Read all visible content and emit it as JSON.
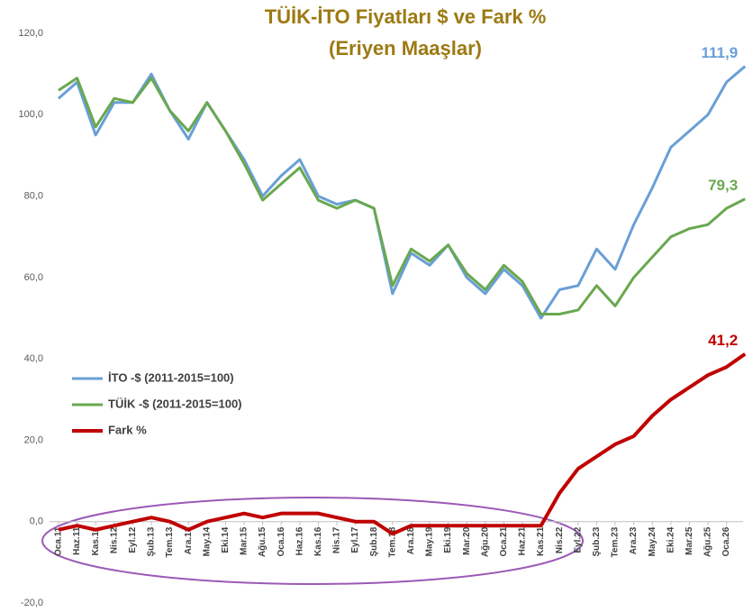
{
  "chart_data": {
    "type": "line",
    "title": "TÜİK-İTO Fiyatları $ ve Fark %",
    "subtitle": "(Eriyen Maaşlar)",
    "categories": [
      "Oca.11",
      "Haz.11",
      "Kas.11",
      "Nis.12",
      "Eyl.12",
      "Şub.13",
      "Tem.13",
      "Ara.13",
      "May.14",
      "Eki.14",
      "Mar.15",
      "Ağu.15",
      "Oca.16",
      "Haz.16",
      "Kas.16",
      "Nis.17",
      "Eyl.17",
      "Şub.18",
      "Tem.18",
      "Ara.18",
      "May.19",
      "Eki.19",
      "Mar.20",
      "Ağu.20",
      "Oca.21",
      "Haz.21",
      "Kas.21",
      "Nis.22",
      "Eyl.22",
      "Şub.23",
      "Tem.23",
      "Ara.23",
      "May.24",
      "Eki.24",
      "Mar.25",
      "Ağu.25",
      "Oca.26",
      null
    ],
    "series": [
      {
        "name": "İTO -$ (2011-2015=100)",
        "color": "#6a9fd6",
        "width": 3,
        "values": [
          104,
          108,
          95,
          103,
          103,
          110,
          101,
          94,
          103,
          96,
          89,
          80,
          85,
          89,
          80,
          78,
          79,
          77,
          56,
          66,
          63,
          68,
          60,
          56,
          62,
          58,
          50,
          57,
          58,
          67,
          62,
          73,
          82,
          92,
          96,
          100,
          108,
          111.9
        ],
        "value_labels": [
          null,
          null,
          null,
          null,
          null,
          null,
          null,
          null,
          null,
          null,
          null,
          null,
          null,
          null,
          null,
          null,
          null,
          null,
          null,
          null,
          null,
          null,
          null,
          null,
          null,
          null,
          null,
          null,
          null,
          null,
          null,
          null,
          null,
          null,
          null,
          null,
          null,
          "111,9"
        ]
      },
      {
        "name": "TÜİK -$ (2011-2015=100)",
        "color": "#6aa84f",
        "width": 3,
        "values": [
          106,
          109,
          97,
          104,
          103,
          109,
          101,
          96,
          103,
          96,
          88,
          79,
          83,
          87,
          79,
          77,
          79,
          77,
          58,
          67,
          64,
          68,
          61,
          57,
          63,
          59,
          51,
          51,
          52,
          58,
          53,
          60,
          65,
          70,
          72,
          73,
          77,
          79.3
        ],
        "value_labels": [
          null,
          null,
          null,
          null,
          null,
          null,
          null,
          null,
          null,
          null,
          null,
          null,
          null,
          null,
          null,
          null,
          null,
          null,
          null,
          null,
          null,
          null,
          null,
          null,
          null,
          null,
          null,
          null,
          null,
          null,
          null,
          null,
          null,
          null,
          null,
          null,
          null,
          "79,3"
        ]
      },
      {
        "name": "Fark %",
        "color": "#c00000",
        "width": 4,
        "values": [
          -2,
          -1,
          -2,
          -1,
          0,
          1,
          0,
          -2,
          0,
          1,
          2,
          1,
          2,
          2,
          2,
          1,
          0,
          0,
          -3,
          -1,
          -1,
          -1,
          -1,
          -1,
          -1,
          -1,
          -1,
          7,
          13,
          16,
          19,
          21,
          26,
          30,
          33,
          36,
          38,
          41.2
        ],
        "value_labels": [
          null,
          null,
          null,
          null,
          null,
          null,
          null,
          null,
          null,
          null,
          null,
          null,
          null,
          null,
          null,
          null,
          null,
          null,
          null,
          null,
          null,
          null,
          null,
          null,
          null,
          null,
          null,
          null,
          null,
          null,
          null,
          null,
          null,
          null,
          null,
          null,
          null,
          "41,2"
        ]
      }
    ],
    "ylim": [
      -20,
      120
    ],
    "yticks": [
      {
        "value": -20,
        "label": "-20,0"
      },
      {
        "value": 0,
        "label": "0,0"
      },
      {
        "value": 20,
        "label": "20,0"
      },
      {
        "value": 40,
        "label": "40,0"
      },
      {
        "value": 60,
        "label": "60,0"
      },
      {
        "value": 80,
        "label": "80,0"
      },
      {
        "value": 100,
        "label": "100,0"
      },
      {
        "value": 120,
        "label": "120,0"
      }
    ],
    "grid": false,
    "legend": "center-left"
  }
}
